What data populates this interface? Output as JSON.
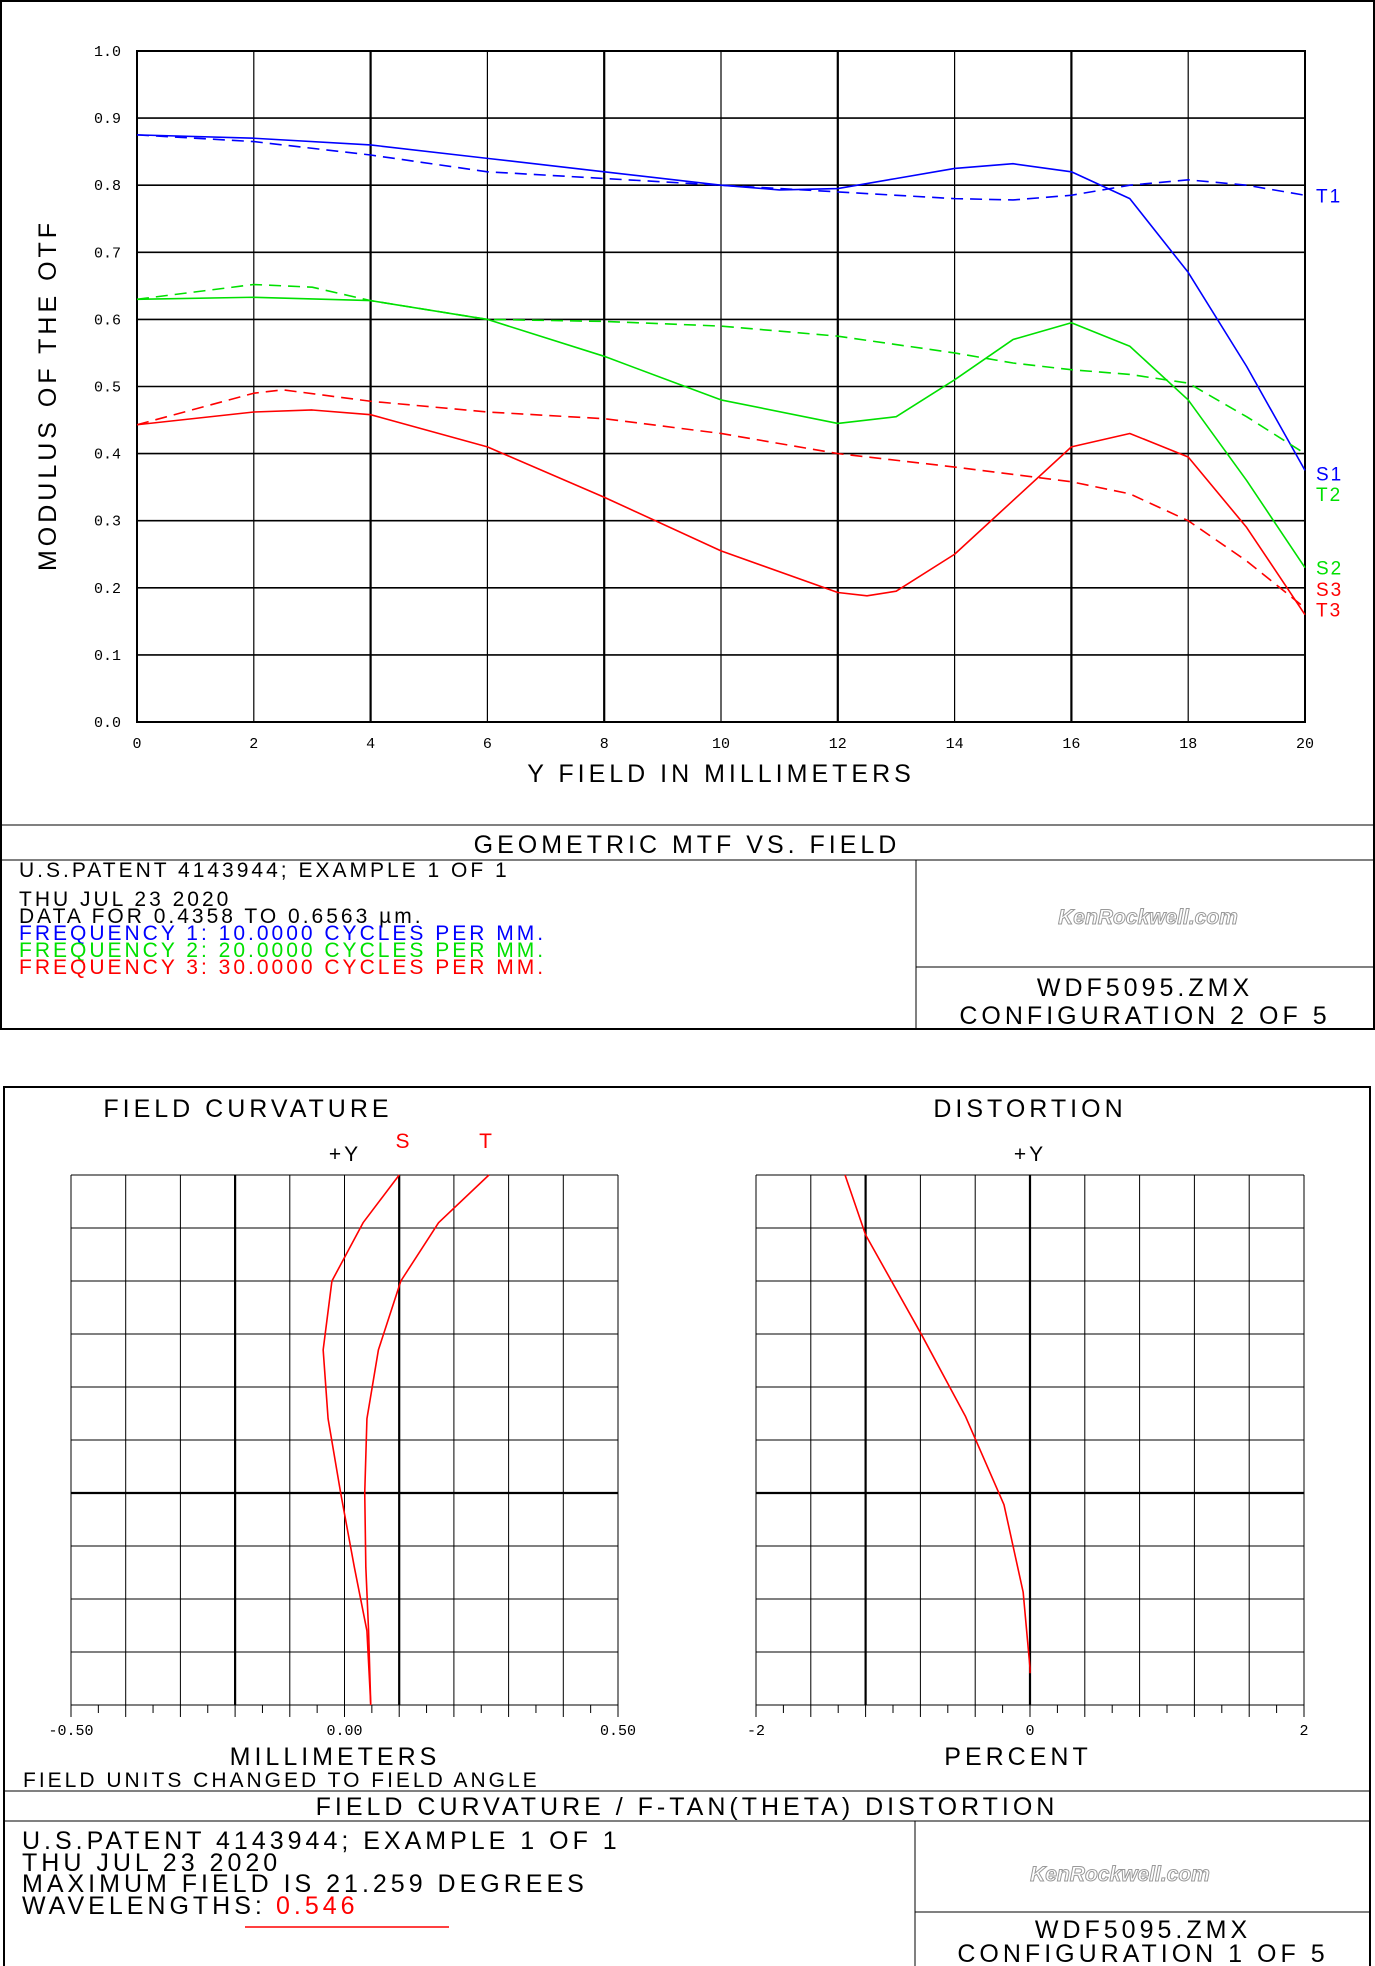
{
  "colors": {
    "blue": "#0000ff",
    "green": "#00e000",
    "red": "#ff0000"
  },
  "mtf": {
    "title": "GEOMETRIC MTF VS. FIELD",
    "info": {
      "patent": "U.S.PATENT 4143944; EXAMPLE 1 OF 1",
      "date": "THU JUL 23 2020",
      "data_range": "DATA FOR 0.4358 TO 0.6563 µm.",
      "freq1": "FREQUENCY 1:   10.0000 CYCLES PER MM.",
      "freq2": "FREQUENCY 2:   20.0000 CYCLES PER MM.",
      "freq3": "FREQUENCY 3:   30.0000 CYCLES PER MM."
    },
    "watermark": "KenRockwell.com",
    "file": "WDF5095.ZMX",
    "config": "CONFIGURATION 2 OF 5"
  },
  "fc": {
    "panel_title": "FIELD CURVATURE / F-TAN(THETA) DISTORTION",
    "note": "FIELD UNITS CHANGED TO FIELD ANGLE",
    "info": {
      "patent": "U.S.PATENT 4143944; EXAMPLE 1 OF 1",
      "date": "THU JUL 23 2020",
      "max_field": "MAXIMUM FIELD IS 21.259 DEGREES",
      "wavelengths_label": "WAVELENGTHS:",
      "wavelength": "0.546"
    },
    "watermark": "KenRockwell.com",
    "file": "WDF5095.ZMX",
    "config": "CONFIGURATION 1 OF 5"
  },
  "chart_data": [
    {
      "type": "line",
      "title": "GEOMETRIC MTF VS. FIELD",
      "xlabel": "Y FIELD IN MILLIMETERS",
      "ylabel": "MODULUS OF THE OTF",
      "xlim": [
        0,
        20
      ],
      "ylim": [
        0,
        1
      ],
      "xticks": [
        "0",
        "2",
        "4",
        "6",
        "8",
        "10",
        "12",
        "14",
        "16",
        "18",
        "20"
      ],
      "yticks": [
        "0.0",
        "0.1",
        "0.2",
        "0.3",
        "0.4",
        "0.5",
        "0.6",
        "0.7",
        "0.8",
        "0.9",
        "1.0"
      ],
      "grid": true,
      "series": [
        {
          "name": "S1",
          "color": "blue",
          "dash": false,
          "x": [
            0,
            2,
            4,
            6,
            8,
            10,
            11,
            12,
            13,
            14,
            15,
            16,
            17,
            18,
            19,
            20
          ],
          "y": [
            0.875,
            0.87,
            0.86,
            0.84,
            0.82,
            0.8,
            0.793,
            0.795,
            0.81,
            0.825,
            0.832,
            0.82,
            0.78,
            0.67,
            0.53,
            0.375
          ]
        },
        {
          "name": "T1",
          "color": "blue",
          "dash": true,
          "x": [
            0,
            2,
            4,
            6,
            8,
            10,
            12,
            14,
            15,
            16,
            17,
            18,
            19,
            20
          ],
          "y": [
            0.875,
            0.865,
            0.845,
            0.82,
            0.81,
            0.8,
            0.79,
            0.78,
            0.778,
            0.785,
            0.8,
            0.808,
            0.8,
            0.785
          ]
        },
        {
          "name": "S2",
          "color": "green",
          "dash": false,
          "x": [
            0,
            2,
            4,
            6,
            8,
            10,
            12,
            13,
            14,
            15,
            16,
            17,
            18,
            19,
            20
          ],
          "y": [
            0.63,
            0.633,
            0.628,
            0.6,
            0.545,
            0.48,
            0.445,
            0.455,
            0.51,
            0.57,
            0.595,
            0.56,
            0.48,
            0.36,
            0.23
          ]
        },
        {
          "name": "T2",
          "color": "green",
          "dash": true,
          "x": [
            0,
            2,
            3,
            4,
            6,
            8,
            10,
            12,
            14,
            15,
            16,
            17,
            18,
            19,
            20
          ],
          "y": [
            0.63,
            0.652,
            0.648,
            0.628,
            0.6,
            0.597,
            0.59,
            0.575,
            0.55,
            0.535,
            0.525,
            0.518,
            0.505,
            0.455,
            0.4
          ]
        },
        {
          "name": "S3",
          "color": "red",
          "dash": false,
          "x": [
            0,
            2,
            3,
            4,
            6,
            8,
            10,
            12,
            12.5,
            13,
            14,
            15,
            16,
            17,
            18,
            19,
            20
          ],
          "y": [
            0.443,
            0.462,
            0.465,
            0.458,
            0.41,
            0.335,
            0.255,
            0.193,
            0.188,
            0.195,
            0.25,
            0.33,
            0.41,
            0.43,
            0.395,
            0.29,
            0.16
          ]
        },
        {
          "name": "T3",
          "color": "red",
          "dash": true,
          "x": [
            0,
            2,
            2.5,
            4,
            6,
            8,
            10,
            12,
            14,
            16,
            17,
            18,
            19,
            20
          ],
          "y": [
            0.443,
            0.49,
            0.495,
            0.478,
            0.462,
            0.452,
            0.43,
            0.4,
            0.38,
            0.358,
            0.34,
            0.3,
            0.24,
            0.17
          ]
        }
      ],
      "end_labels": [
        {
          "text": "T1",
          "color": "blue",
          "y": 0.785
        },
        {
          "text": "S1",
          "color": "blue",
          "y": 0.37
        },
        {
          "text": "T2",
          "color": "green",
          "y": 0.34
        },
        {
          "text": "S2",
          "color": "green",
          "y": 0.23
        },
        {
          "text": "S3",
          "color": "red",
          "y": 0.198
        },
        {
          "text": "T3",
          "color": "red",
          "y": 0.168
        }
      ]
    },
    {
      "type": "line",
      "title": "FIELD CURVATURE",
      "xlabel": "MILLIMETERS",
      "axis_label": "+Y",
      "xlim": [
        -0.5,
        0.5
      ],
      "ylim": [
        0,
        1
      ],
      "xticks": [
        "-0.50",
        "0.00",
        "0.50"
      ],
      "series": [
        {
          "name": "S",
          "color": "red",
          "x": [
            0.048,
            0.041,
            0.018,
            -0.007,
            -0.03,
            -0.039,
            -0.023,
            0.034,
            0.1
          ],
          "y": [
            0,
            0.14,
            0.26,
            0.4,
            0.54,
            0.67,
            0.8,
            0.91,
            1
          ]
        },
        {
          "name": "T",
          "color": "red",
          "x": [
            0.048,
            0.044,
            0.039,
            0.037,
            0.041,
            0.062,
            0.103,
            0.172,
            0.264
          ],
          "y": [
            0,
            0.14,
            0.26,
            0.4,
            0.54,
            0.67,
            0.8,
            0.91,
            1
          ]
        }
      ]
    },
    {
      "type": "line",
      "title": "DISTORTION",
      "xlabel": "PERCENT",
      "axis_label": "+Y",
      "xlim": [
        -2,
        2
      ],
      "ylim": [
        0,
        1
      ],
      "xticks": [
        "-2",
        "0",
        "2"
      ],
      "series": [
        {
          "name": "Distortion",
          "color": "red",
          "x": [
            0,
            0,
            -0.05,
            -0.19,
            -0.47,
            -0.79,
            -1.2,
            -1.35
          ],
          "y": [
            0.06,
            0.07,
            0.213,
            0.378,
            0.544,
            0.698,
            0.887,
            1
          ]
        }
      ]
    }
  ]
}
